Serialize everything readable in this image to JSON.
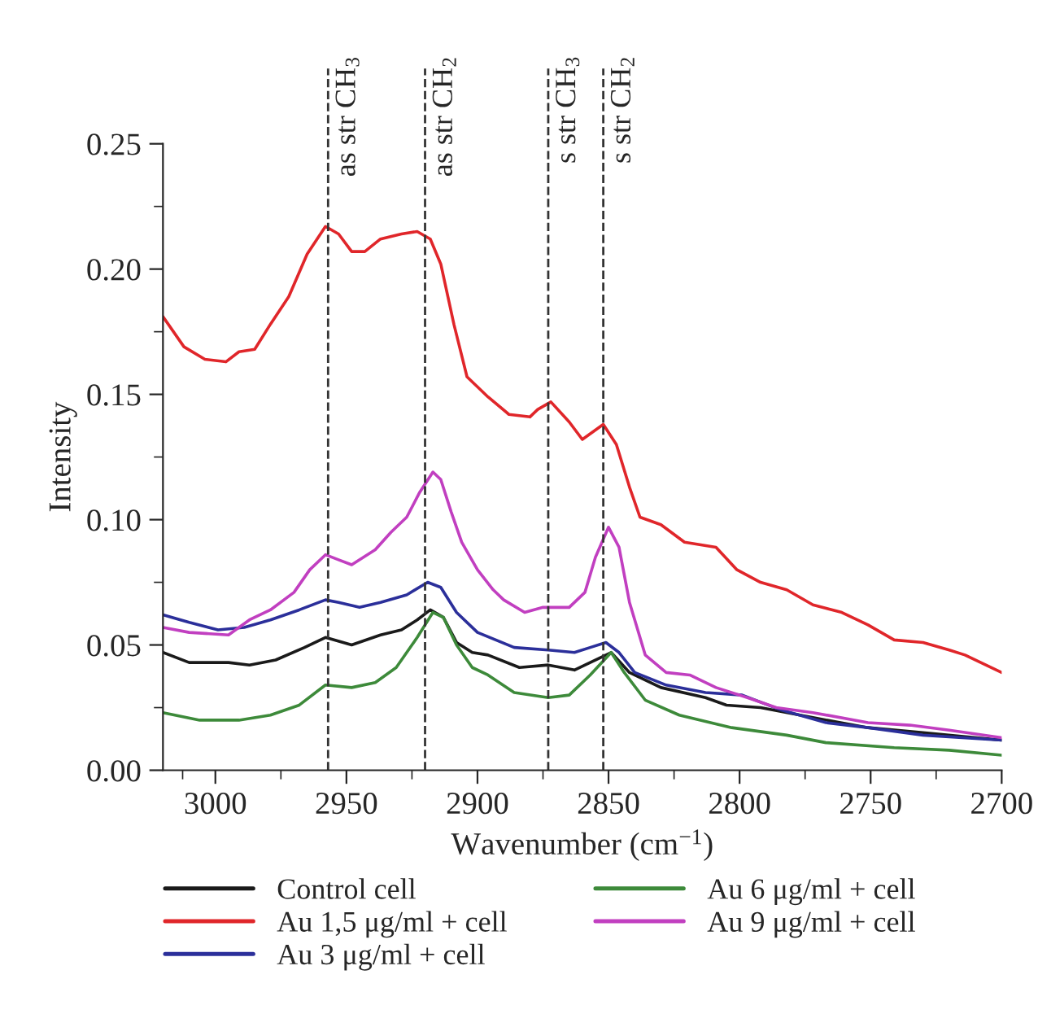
{
  "chart_data": {
    "type": "line",
    "xlabel": "Wavenumber (cm$^{−1}$)",
    "ylabel": "Intensity",
    "xlim": [
      3020,
      2700
    ],
    "ylim": [
      0,
      0.25
    ],
    "xticks": [
      {
        "value": 3012.5,
        "label": null
      },
      3000,
      {
        "value": 2975,
        "label": null
      },
      2950,
      {
        "value": 2925,
        "label": null
      },
      2900,
      {
        "value": 2875,
        "label": null
      },
      2850,
      {
        "value": 2825,
        "label": null
      },
      2800,
      {
        "value": 2775,
        "label": null
      },
      2750,
      {
        "value": 2725,
        "label": null
      },
      2700
    ],
    "yticks": [
      {
        "value": 0,
        "label": "0.00"
      },
      {
        "value": 0.025,
        "label": null
      },
      {
        "value": 0.05,
        "label": "0.05"
      },
      {
        "value": 0.075,
        "label": null
      },
      {
        "value": 0.1,
        "label": "0.10"
      },
      {
        "value": 0.125,
        "label": null
      },
      {
        "value": 0.15,
        "label": "0.15"
      },
      {
        "value": 0.175,
        "label": null
      },
      {
        "value": 0.2,
        "label": "0.20"
      },
      {
        "value": 0.225,
        "label": null
      },
      {
        "value": 0.25,
        "label": "0.25"
      }
    ],
    "grid": false,
    "legend": "bottom",
    "marker": "none",
    "line_style": "solid",
    "ref_lines": [
      {
        "axis": "x",
        "value": 2957,
        "label": "as str CH$_{3}$",
        "line_style": "dashed",
        "color": "#333333"
      },
      {
        "axis": "x",
        "value": 2920,
        "label": "as str CH$_{2}$",
        "line_style": "dashed",
        "color": "#333333"
      },
      {
        "axis": "x",
        "value": 2873,
        "label": "s str CH$_{3}$",
        "line_style": "dashed",
        "color": "#333333"
      },
      {
        "axis": "x",
        "value": 2852,
        "label": "s str CH$_{2}$",
        "line_style": "dashed",
        "color": "#333333"
      }
    ],
    "series": [
      {
        "name": "Control cell",
        "color": "#1a1a1a",
        "x": [
          3020,
          3010,
          2995,
          2987,
          2977,
          2966,
          2958,
          2948,
          2937,
          2929,
          2923,
          2918,
          2913,
          2908,
          2902,
          2896,
          2884,
          2873,
          2863,
          2857,
          2849,
          2842,
          2830,
          2813,
          2805,
          2792,
          2772,
          2751,
          2730,
          2700
        ],
        "values": [
          0.047,
          0.043,
          0.043,
          0.042,
          0.044,
          0.049,
          0.053,
          0.05,
          0.054,
          0.056,
          0.06,
          0.064,
          0.061,
          0.051,
          0.047,
          0.046,
          0.041,
          0.042,
          0.04,
          0.043,
          0.047,
          0.039,
          0.033,
          0.029,
          0.026,
          0.025,
          0.021,
          0.017,
          0.015,
          0.012
        ]
      },
      {
        "name": "Au 1,5 μg/ml + cell",
        "color": "#e0262a",
        "x": [
          3020,
          3012,
          3004,
          2996,
          2991,
          2985,
          2979,
          2972,
          2965,
          2958,
          2953,
          2948,
          2943,
          2937,
          2929,
          2923,
          2918,
          2914,
          2909,
          2904,
          2896,
          2888,
          2880,
          2877,
          2872,
          2865,
          2860,
          2852,
          2847,
          2842,
          2838,
          2830,
          2821,
          2809,
          2801,
          2792,
          2782,
          2772,
          2761,
          2751,
          2741,
          2730,
          2720,
          2714,
          2700
        ],
        "values": [
          0.181,
          0.169,
          0.164,
          0.163,
          0.167,
          0.168,
          0.178,
          0.189,
          0.206,
          0.217,
          0.214,
          0.207,
          0.207,
          0.212,
          0.214,
          0.215,
          0.212,
          0.202,
          0.178,
          0.157,
          0.149,
          0.142,
          0.141,
          0.144,
          0.147,
          0.139,
          0.132,
          0.138,
          0.13,
          0.113,
          0.101,
          0.098,
          0.091,
          0.089,
          0.08,
          0.075,
          0.072,
          0.066,
          0.063,
          0.058,
          0.052,
          0.051,
          0.048,
          0.046,
          0.039
        ]
      },
      {
        "name": "Au 3 μg/ml + cell",
        "color": "#2b2f9a",
        "x": [
          3020,
          3010,
          2999,
          2989,
          2979,
          2968,
          2958,
          2953,
          2945,
          2937,
          2927,
          2919,
          2914,
          2908,
          2900,
          2893,
          2886,
          2873,
          2863,
          2857,
          2851,
          2846,
          2840,
          2828,
          2813,
          2799,
          2784,
          2767,
          2751,
          2730,
          2700
        ],
        "values": [
          0.062,
          0.059,
          0.056,
          0.057,
          0.06,
          0.064,
          0.068,
          0.067,
          0.065,
          0.067,
          0.07,
          0.075,
          0.073,
          0.063,
          0.055,
          0.052,
          0.049,
          0.048,
          0.047,
          0.049,
          0.051,
          0.047,
          0.039,
          0.034,
          0.031,
          0.03,
          0.024,
          0.019,
          0.017,
          0.014,
          0.012
        ]
      },
      {
        "name": "Au 6 μg/ml + cell",
        "color": "#3d8a3a",
        "x": [
          3020,
          3006,
          2991,
          2979,
          2968,
          2958,
          2948,
          2939,
          2931,
          2923,
          2917,
          2913,
          2908,
          2902,
          2896,
          2886,
          2873,
          2865,
          2857,
          2849,
          2844,
          2836,
          2823,
          2803,
          2782,
          2767,
          2741,
          2720,
          2700
        ],
        "values": [
          0.023,
          0.02,
          0.02,
          0.022,
          0.026,
          0.034,
          0.033,
          0.035,
          0.041,
          0.053,
          0.063,
          0.061,
          0.05,
          0.041,
          0.038,
          0.031,
          0.029,
          0.03,
          0.038,
          0.047,
          0.039,
          0.028,
          0.022,
          0.017,
          0.014,
          0.011,
          0.009,
          0.008,
          0.006
        ]
      },
      {
        "name": "Au 9 μg/ml + cell",
        "color": "#c13fc0",
        "x": [
          3020,
          3010,
          2995,
          2987,
          2979,
          2970,
          2964,
          2958,
          2953,
          2948,
          2939,
          2933,
          2927,
          2922,
          2917,
          2914,
          2910,
          2906,
          2900,
          2894,
          2890,
          2882,
          2875,
          2865,
          2859,
          2855,
          2850,
          2846,
          2842,
          2836,
          2828,
          2819,
          2809,
          2797,
          2786,
          2772,
          2751,
          2735,
          2720,
          2700
        ],
        "values": [
          0.057,
          0.055,
          0.054,
          0.06,
          0.064,
          0.071,
          0.08,
          0.086,
          0.084,
          0.082,
          0.088,
          0.095,
          0.101,
          0.111,
          0.119,
          0.116,
          0.103,
          0.091,
          0.08,
          0.072,
          0.068,
          0.063,
          0.065,
          0.065,
          0.071,
          0.085,
          0.097,
          0.089,
          0.067,
          0.046,
          0.039,
          0.038,
          0.033,
          0.029,
          0.025,
          0.023,
          0.019,
          0.018,
          0.016,
          0.013
        ]
      }
    ]
  }
}
